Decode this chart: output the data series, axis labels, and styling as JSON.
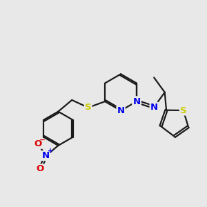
{
  "bg_color": "#e8e8e8",
  "bond_color": "#1a1a1a",
  "bond_width": 1.6,
  "atom_colors": {
    "N": "#0000ee",
    "S": "#cccc00",
    "O": "#dd0000",
    "C": "#1a1a1a"
  },
  "font_size": 9.5
}
